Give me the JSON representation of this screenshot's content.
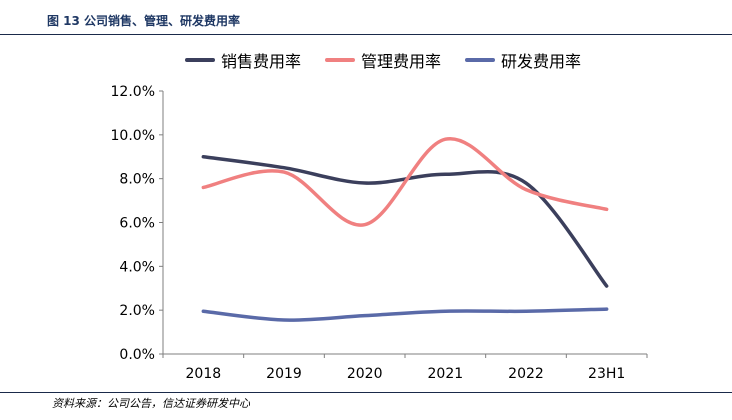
{
  "figure": {
    "title": "图 13  公司销售、管理、研发费用率",
    "source": "资料来源：公司公告，信达证券研发中心"
  },
  "chart_data": {
    "type": "line",
    "categories": [
      "2018",
      "2019",
      "2020",
      "2021",
      "2022",
      "23H1"
    ],
    "ylim": [
      0,
      12
    ],
    "yticks": [
      "0.0%",
      "2.0%",
      "4.0%",
      "6.0%",
      "8.0%",
      "10.0%",
      "12.0%"
    ],
    "grid": false,
    "smooth": true,
    "legend_position": "top",
    "series": [
      {
        "name": "销售费用率",
        "color": "#3b3f5c",
        "values": [
          9.0,
          8.5,
          7.8,
          8.2,
          7.8,
          3.1
        ]
      },
      {
        "name": "管理费用率",
        "color": "#f08080",
        "values": [
          7.6,
          8.3,
          5.9,
          9.8,
          7.5,
          6.6
        ]
      },
      {
        "name": "研发费用率",
        "color": "#5a6aa8",
        "values": [
          1.95,
          1.55,
          1.75,
          1.95,
          1.95,
          2.05
        ]
      }
    ]
  }
}
